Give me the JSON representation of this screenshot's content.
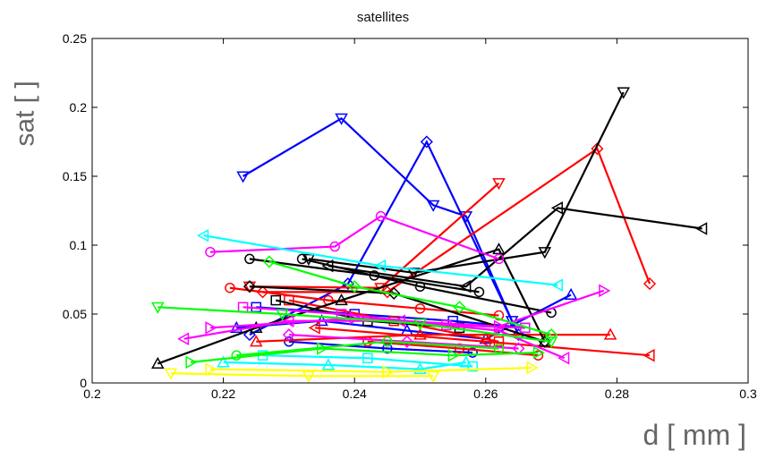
{
  "chart_data": {
    "type": "line",
    "title": "satellites",
    "xlabel": "d [ mm ]",
    "ylabel": "sat [ ]",
    "xlim": [
      0.2,
      0.3
    ],
    "ylim": [
      0,
      0.25
    ],
    "xticks": [
      "0.2",
      "0.22",
      "0.24",
      "0.26",
      "0.28",
      "0.3"
    ],
    "yticks": [
      "0",
      "0.05",
      "0.1",
      "0.15",
      "0.2",
      "0.25"
    ],
    "grid": false,
    "series": [
      {
        "color": "#0000ff",
        "marker": "triangle-down",
        "points": [
          [
            0.223,
            0.15
          ],
          [
            0.238,
            0.192
          ],
          [
            0.252,
            0.129
          ],
          [
            0.257,
            0.121
          ],
          [
            0.264,
            0.045
          ]
        ]
      },
      {
        "color": "#0000ff",
        "marker": "diamond",
        "points": [
          [
            0.224,
            0.035
          ],
          [
            0.239,
            0.072
          ],
          [
            0.251,
            0.175
          ],
          [
            0.265,
            0.035
          ]
        ]
      },
      {
        "color": "#0000ff",
        "marker": "triangle-up",
        "points": [
          [
            0.222,
            0.04
          ],
          [
            0.235,
            0.045
          ],
          [
            0.248,
            0.038
          ],
          [
            0.26,
            0.032
          ],
          [
            0.273,
            0.064
          ]
        ]
      },
      {
        "color": "#0000ff",
        "marker": "square",
        "points": [
          [
            0.225,
            0.055
          ],
          [
            0.24,
            0.05
          ],
          [
            0.255,
            0.045
          ],
          [
            0.266,
            0.04
          ]
        ]
      },
      {
        "color": "#0000ff",
        "marker": "circle",
        "points": [
          [
            0.23,
            0.03
          ],
          [
            0.245,
            0.025
          ],
          [
            0.258,
            0.022
          ]
        ]
      },
      {
        "color": "#ff0000",
        "marker": "circle",
        "points": [
          [
            0.221,
            0.069
          ],
          [
            0.236,
            0.06
          ],
          [
            0.25,
            0.054
          ],
          [
            0.262,
            0.049
          ]
        ]
      },
      {
        "color": "#ff0000",
        "marker": "triangle-down",
        "points": [
          [
            0.224,
            0.07
          ],
          [
            0.244,
            0.069
          ],
          [
            0.262,
            0.145
          ]
        ]
      },
      {
        "color": "#ff0000",
        "marker": "diamond",
        "points": [
          [
            0.226,
            0.066
          ],
          [
            0.245,
            0.066
          ],
          [
            0.277,
            0.17
          ],
          [
            0.285,
            0.072
          ]
        ]
      },
      {
        "color": "#ff0000",
        "marker": "triangle-left",
        "points": [
          [
            0.234,
            0.04
          ],
          [
            0.26,
            0.03
          ],
          [
            0.285,
            0.02
          ]
        ]
      },
      {
        "color": "#ff0000",
        "marker": "triangle-up",
        "points": [
          [
            0.225,
            0.03
          ],
          [
            0.25,
            0.035
          ],
          [
            0.279,
            0.035
          ]
        ]
      },
      {
        "color": "#ff0000",
        "marker": "square",
        "points": [
          [
            0.23,
            0.06
          ],
          [
            0.246,
            0.045
          ],
          [
            0.262,
            0.03
          ]
        ]
      },
      {
        "color": "#ff0000",
        "marker": "circle",
        "points": [
          [
            0.242,
            0.03
          ],
          [
            0.256,
            0.025
          ],
          [
            0.268,
            0.02
          ]
        ]
      },
      {
        "color": "#000000",
        "marker": "triangle-up",
        "points": [
          [
            0.21,
            0.014
          ],
          [
            0.225,
            0.04
          ],
          [
            0.238,
            0.06
          ],
          [
            0.262,
            0.097
          ],
          [
            0.269,
            0.03
          ]
        ]
      },
      {
        "color": "#000000",
        "marker": "triangle-down",
        "points": [
          [
            0.233,
            0.09
          ],
          [
            0.249,
            0.08
          ],
          [
            0.269,
            0.095
          ],
          [
            0.281,
            0.211
          ]
        ]
      },
      {
        "color": "#000000",
        "marker": "triangle-left",
        "points": [
          [
            0.236,
            0.085
          ],
          [
            0.257,
            0.07
          ],
          [
            0.271,
            0.127
          ],
          [
            0.293,
            0.112
          ]
        ]
      },
      {
        "color": "#000000",
        "marker": "circle",
        "points": [
          [
            0.224,
            0.09
          ],
          [
            0.243,
            0.078
          ],
          [
            0.259,
            0.066
          ]
        ]
      },
      {
        "color": "#000000",
        "marker": "diamond",
        "points": [
          [
            0.224,
            0.07
          ],
          [
            0.246,
            0.065
          ],
          [
            0.269,
            0.03
          ]
        ]
      },
      {
        "color": "#000000",
        "marker": "circle",
        "points": [
          [
            0.232,
            0.09
          ],
          [
            0.25,
            0.07
          ],
          [
            0.27,
            0.051
          ]
        ]
      },
      {
        "color": "#000000",
        "marker": "square",
        "points": [
          [
            0.228,
            0.06
          ],
          [
            0.242,
            0.045
          ],
          [
            0.256,
            0.04
          ]
        ]
      },
      {
        "color": "#ff00ff",
        "marker": "circle",
        "points": [
          [
            0.218,
            0.095
          ],
          [
            0.237,
            0.099
          ],
          [
            0.244,
            0.121
          ],
          [
            0.262,
            0.09
          ]
        ]
      },
      {
        "color": "#ff00ff",
        "marker": "triangle-left",
        "points": [
          [
            0.214,
            0.032
          ],
          [
            0.23,
            0.045
          ],
          [
            0.247,
            0.045
          ],
          [
            0.262,
            0.038
          ],
          [
            0.272,
            0.018
          ]
        ]
      },
      {
        "color": "#ff00ff",
        "marker": "triangle-right",
        "points": [
          [
            0.218,
            0.04
          ],
          [
            0.24,
            0.047
          ],
          [
            0.262,
            0.041
          ],
          [
            0.278,
            0.067
          ]
        ]
      },
      {
        "color": "#ff00ff",
        "marker": "square",
        "points": [
          [
            0.223,
            0.055
          ],
          [
            0.238,
            0.05
          ],
          [
            0.254,
            0.042
          ],
          [
            0.266,
            0.04
          ]
        ]
      },
      {
        "color": "#ff00ff",
        "marker": "diamond",
        "points": [
          [
            0.23,
            0.035
          ],
          [
            0.248,
            0.03
          ],
          [
            0.265,
            0.025
          ]
        ]
      },
      {
        "color": "#00ffff",
        "marker": "triangle-left",
        "points": [
          [
            0.217,
            0.107
          ],
          [
            0.244,
            0.085
          ],
          [
            0.271,
            0.071
          ]
        ]
      },
      {
        "color": "#00ffff",
        "marker": "triangle-up",
        "points": [
          [
            0.22,
            0.015
          ],
          [
            0.236,
            0.013
          ],
          [
            0.25,
            0.01
          ],
          [
            0.257,
            0.015
          ]
        ]
      },
      {
        "color": "#00ffff",
        "marker": "square",
        "points": [
          [
            0.226,
            0.02
          ],
          [
            0.242,
            0.018
          ],
          [
            0.258,
            0.012
          ]
        ]
      },
      {
        "color": "#00ff00",
        "marker": "triangle-down",
        "points": [
          [
            0.21,
            0.055
          ],
          [
            0.229,
            0.05
          ],
          [
            0.25,
            0.043
          ],
          [
            0.27,
            0.03
          ]
        ]
      },
      {
        "color": "#00ff00",
        "marker": "triangle-right",
        "points": [
          [
            0.215,
            0.015
          ],
          [
            0.235,
            0.025
          ],
          [
            0.255,
            0.02
          ],
          [
            0.268,
            0.022
          ]
        ]
      },
      {
        "color": "#00ff00",
        "marker": "circle",
        "points": [
          [
            0.222,
            0.02
          ],
          [
            0.245,
            0.03
          ],
          [
            0.262,
            0.025
          ]
        ]
      },
      {
        "color": "#00ff00",
        "marker": "diamond",
        "points": [
          [
            0.227,
            0.088
          ],
          [
            0.24,
            0.07
          ],
          [
            0.256,
            0.055
          ],
          [
            0.27,
            0.035
          ]
        ]
      },
      {
        "color": "#ffff00",
        "marker": "triangle-down",
        "points": [
          [
            0.212,
            0.007
          ],
          [
            0.233,
            0.005
          ],
          [
            0.252,
            0.005
          ]
        ]
      },
      {
        "color": "#ffff00",
        "marker": "triangle-right",
        "points": [
          [
            0.218,
            0.01
          ],
          [
            0.245,
            0.008
          ],
          [
            0.267,
            0.011
          ]
        ]
      }
    ]
  }
}
